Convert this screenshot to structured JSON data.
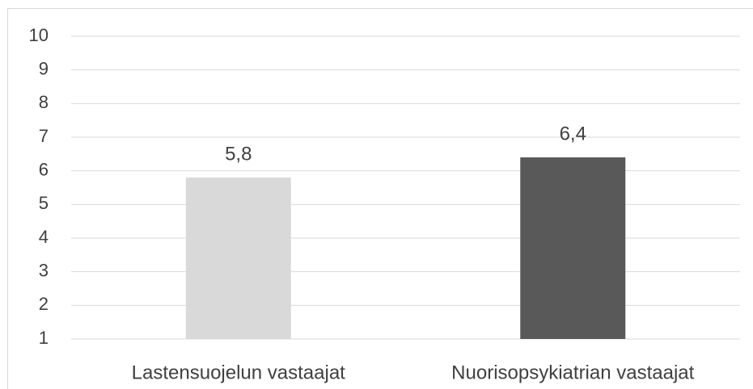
{
  "chart_data": {
    "type": "bar",
    "categories": [
      "Lastensuojelun vastaajat",
      "Nuorisopsykiatrian vastaajat"
    ],
    "values": [
      5.8,
      6.4
    ],
    "value_labels": [
      "5,8",
      "6,4"
    ],
    "colors": [
      "#d9d9d9",
      "#595959"
    ],
    "ylim": [
      1,
      10
    ],
    "yticks": [
      1,
      2,
      3,
      4,
      5,
      6,
      7,
      8,
      9,
      10
    ],
    "grid": true
  }
}
